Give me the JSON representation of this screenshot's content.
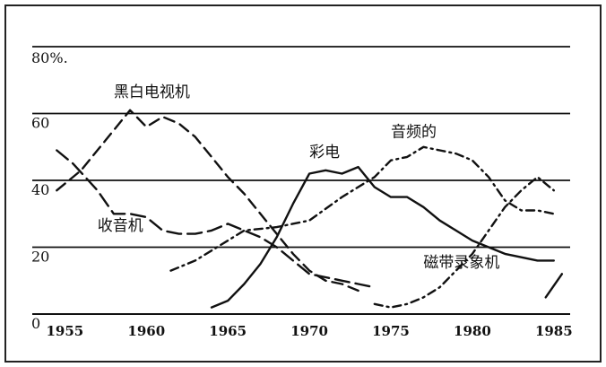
{
  "chart_data": {
    "type": "line",
    "title": "",
    "xlabel": "",
    "ylabel": "",
    "xlim": [
      1953,
      1986
    ],
    "ylim": [
      0,
      80
    ],
    "x_ticks": [
      "1955",
      "1960",
      "1965",
      "1970",
      "1975",
      "1980",
      "1985"
    ],
    "y_ticks": [
      "0",
      "20",
      "40",
      "60",
      "80%."
    ],
    "y_tick_values": [
      0,
      20,
      40,
      60,
      80
    ],
    "grid": "horizontal",
    "series": [
      {
        "name": "黑白电视机",
        "style": "dashed",
        "points": [
          [
            1954.5,
            37
          ],
          [
            1956,
            43
          ],
          [
            1957.5,
            52
          ],
          [
            1959,
            61
          ],
          [
            1960,
            56
          ],
          [
            1961,
            59
          ],
          [
            1962,
            57
          ],
          [
            1963,
            53
          ],
          [
            1964,
            47
          ],
          [
            1965,
            41
          ],
          [
            1966,
            36
          ],
          [
            1967,
            30
          ],
          [
            1968,
            24
          ],
          [
            1969,
            18
          ],
          [
            1970,
            13
          ],
          [
            1971,
            10
          ],
          [
            1972,
            9
          ],
          [
            1973,
            7
          ]
        ]
      },
      {
        "name": "收音机",
        "style": "long-dash",
        "points": [
          [
            1954.5,
            49
          ],
          [
            1955.5,
            45
          ],
          [
            1957,
            37
          ],
          [
            1958,
            30
          ],
          [
            1959,
            30
          ],
          [
            1960,
            29
          ],
          [
            1961,
            25
          ],
          [
            1962,
            24
          ],
          [
            1963,
            24
          ],
          [
            1964,
            25
          ],
          [
            1965,
            27
          ],
          [
            1966,
            25
          ],
          [
            1967,
            23
          ],
          [
            1968,
            20
          ],
          [
            1969,
            16
          ],
          [
            1970,
            12
          ],
          [
            1971,
            11
          ],
          [
            1972,
            10
          ],
          [
            1973,
            9
          ],
          [
            1974,
            8
          ]
        ]
      },
      {
        "name": "彩电",
        "style": "solid",
        "points": [
          [
            1964,
            2
          ],
          [
            1965,
            4
          ],
          [
            1966,
            9
          ],
          [
            1967,
            15
          ],
          [
            1968,
            23
          ],
          [
            1969,
            33
          ],
          [
            1970,
            42
          ],
          [
            1971,
            43
          ],
          [
            1972,
            42
          ],
          [
            1973,
            44
          ],
          [
            1974,
            38
          ],
          [
            1975,
            35
          ],
          [
            1976,
            35
          ],
          [
            1977,
            32
          ],
          [
            1978,
            28
          ],
          [
            1979,
            25
          ],
          [
            1980,
            22
          ],
          [
            1981,
            20
          ],
          [
            1982,
            18
          ],
          [
            1983,
            17
          ],
          [
            1984,
            16
          ],
          [
            1985,
            16
          ]
        ]
      },
      {
        "name": "音频的",
        "style": "dash-dot",
        "points": [
          [
            1961.5,
            13
          ],
          [
            1963,
            16
          ],
          [
            1965,
            22
          ],
          [
            1966,
            25
          ],
          [
            1968,
            26
          ],
          [
            1970,
            28
          ],
          [
            1972,
            35
          ],
          [
            1974,
            41
          ],
          [
            1975,
            46
          ],
          [
            1976,
            47
          ],
          [
            1977,
            50
          ],
          [
            1978,
            49
          ],
          [
            1979,
            48
          ],
          [
            1980,
            46
          ],
          [
            1981,
            41
          ],
          [
            1982,
            34
          ],
          [
            1983,
            31
          ],
          [
            1984,
            31
          ],
          [
            1985,
            30
          ]
        ]
      },
      {
        "name": "磁带录象机",
        "style": "dash-dot",
        "points": [
          [
            1974,
            3
          ],
          [
            1975,
            2
          ],
          [
            1976,
            3
          ],
          [
            1977,
            5
          ],
          [
            1978,
            8
          ],
          [
            1979,
            13
          ],
          [
            1980,
            18
          ],
          [
            1981,
            25
          ],
          [
            1982,
            32
          ],
          [
            1983,
            37
          ],
          [
            1984,
            41
          ],
          [
            1985,
            37
          ]
        ]
      },
      {
        "name": "",
        "style": "solid",
        "points": [
          [
            1984.5,
            5
          ],
          [
            1985.5,
            12
          ]
        ]
      }
    ],
    "labels": [
      {
        "text": "黑白电视机",
        "x": 1958,
        "y": 65
      },
      {
        "text": "收音机",
        "x": 1957,
        "y": 25
      },
      {
        "text": "彩电",
        "x": 1970,
        "y": 47
      },
      {
        "text": "音频的",
        "x": 1975,
        "y": 53
      },
      {
        "text": "磁带录象机",
        "x": 1977,
        "y": 14
      }
    ]
  }
}
